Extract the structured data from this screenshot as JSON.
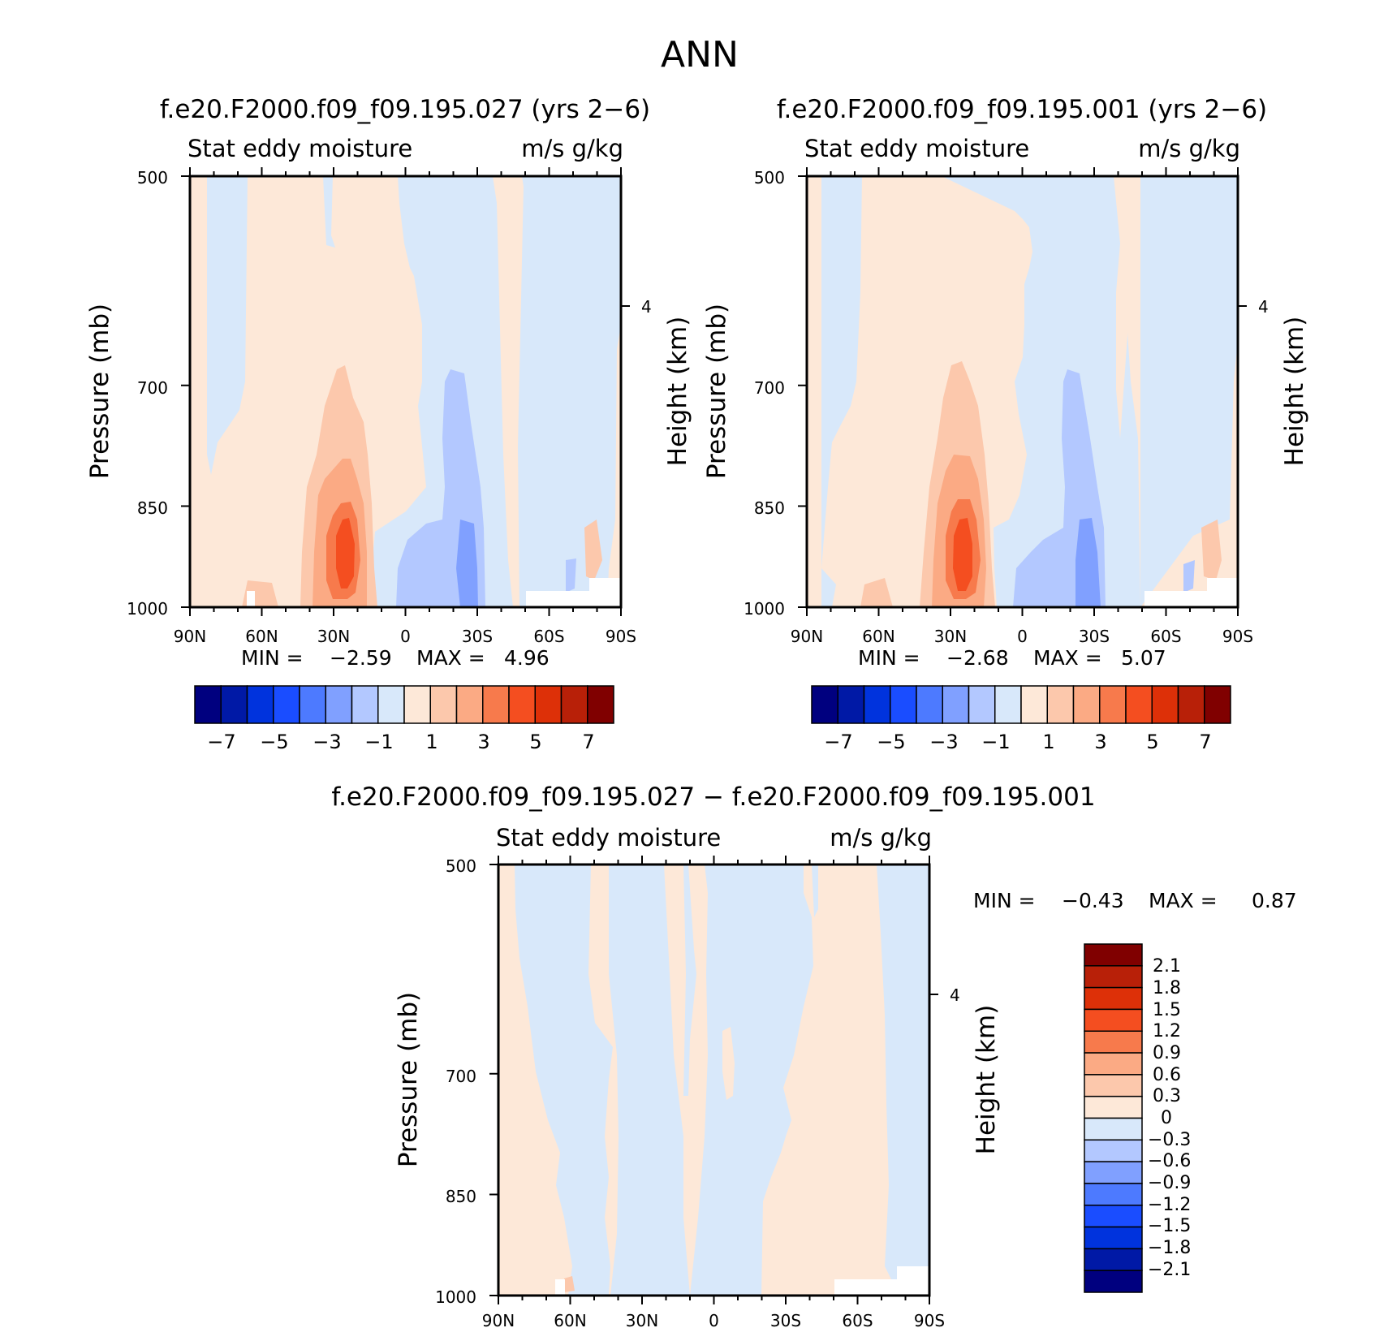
{
  "page_title": "ANN",
  "colors": {
    "main_scale": [
      "#00007f",
      "#0019a6",
      "#0033dd",
      "#1a4dff",
      "#4d7aff",
      "#80a0ff",
      "#b3c8ff",
      "#d8e8fa",
      "#fde8d8",
      "#fcc8ac",
      "#fbaa84",
      "#f77a4c",
      "#f44e20",
      "#dd3008",
      "#b82008",
      "#800000"
    ],
    "diff_scale": [
      "#00007f",
      "#0019a6",
      "#0033dd",
      "#1a4dff",
      "#4d7aff",
      "#80a0ff",
      "#b3c8ff",
      "#d8e8fa",
      "#fde8d8",
      "#fcc8ac",
      "#fbaa84",
      "#f77a4c",
      "#f44e20",
      "#dd3008",
      "#b82008",
      "#800000"
    ],
    "white_mask": "#ffffff"
  },
  "chart_data": [
    {
      "type": "heatmap",
      "title": "f.e20.F2000.f09_f09.195.027 (yrs 2−6)",
      "subtitle_left": "Stat eddy moisture",
      "subtitle_right": "m/s g/kg",
      "ylabel": "Pressure (mb)",
      "y2label": "Height (km)",
      "xticks": [
        "90N",
        "60N",
        "30N",
        "0",
        "30S",
        "60S",
        "90S"
      ],
      "xlim": [
        90,
        -90
      ],
      "yticks": [
        "500",
        "700",
        "850",
        "1000"
      ],
      "ylim": [
        1000,
        500
      ],
      "y2ticks": [
        "4"
      ],
      "min_label": "MIN =",
      "min_value": "−2.59",
      "max_label": "MAX =",
      "max_value": "4.96",
      "legend": {
        "orientation": "horizontal",
        "labels": [
          "−7",
          "−5",
          "−3",
          "−1",
          "1",
          "3",
          "5",
          "7"
        ]
      }
    },
    {
      "type": "heatmap",
      "title": "f.e20.F2000.f09_f09.195.001 (yrs 2−6)",
      "subtitle_left": "Stat eddy moisture",
      "subtitle_right": "m/s g/kg",
      "ylabel": "Pressure (mb)",
      "y2label": "Height (km)",
      "xticks": [
        "90N",
        "60N",
        "30N",
        "0",
        "30S",
        "60S",
        "90S"
      ],
      "xlim": [
        90,
        -90
      ],
      "yticks": [
        "500",
        "700",
        "850",
        "1000"
      ],
      "ylim": [
        1000,
        500
      ],
      "y2ticks": [
        "4"
      ],
      "min_label": "MIN =",
      "min_value": "−2.68",
      "max_label": "MAX =",
      "max_value": "5.07",
      "legend": {
        "orientation": "horizontal",
        "labels": [
          "−7",
          "−5",
          "−3",
          "−1",
          "1",
          "3",
          "5",
          "7"
        ]
      }
    },
    {
      "type": "heatmap",
      "title": "f.e20.F2000.f09_f09.195.027 − f.e20.F2000.f09_f09.195.001",
      "subtitle_left": "Stat eddy moisture",
      "subtitle_right": "m/s g/kg",
      "ylabel": "Pressure (mb)",
      "y2label": "Height (km)",
      "xticks": [
        "90N",
        "60N",
        "30N",
        "0",
        "30S",
        "60S",
        "90S"
      ],
      "xlim": [
        90,
        -90
      ],
      "yticks": [
        "500",
        "700",
        "850",
        "1000"
      ],
      "ylim": [
        1000,
        500
      ],
      "y2ticks": [
        "4"
      ],
      "min_label": "MIN =",
      "min_value": "−0.43",
      "max_label": "MAX =",
      "max_value": "0.87",
      "legend": {
        "orientation": "vertical",
        "labels": [
          "2.1",
          "1.8",
          "1.5",
          "1.2",
          "0.9",
          "0.6",
          "0.3",
          "0",
          "−0.3",
          "−0.6",
          "−0.9",
          "−1.2",
          "−1.5",
          "−1.8",
          "−2.1"
        ]
      }
    }
  ]
}
